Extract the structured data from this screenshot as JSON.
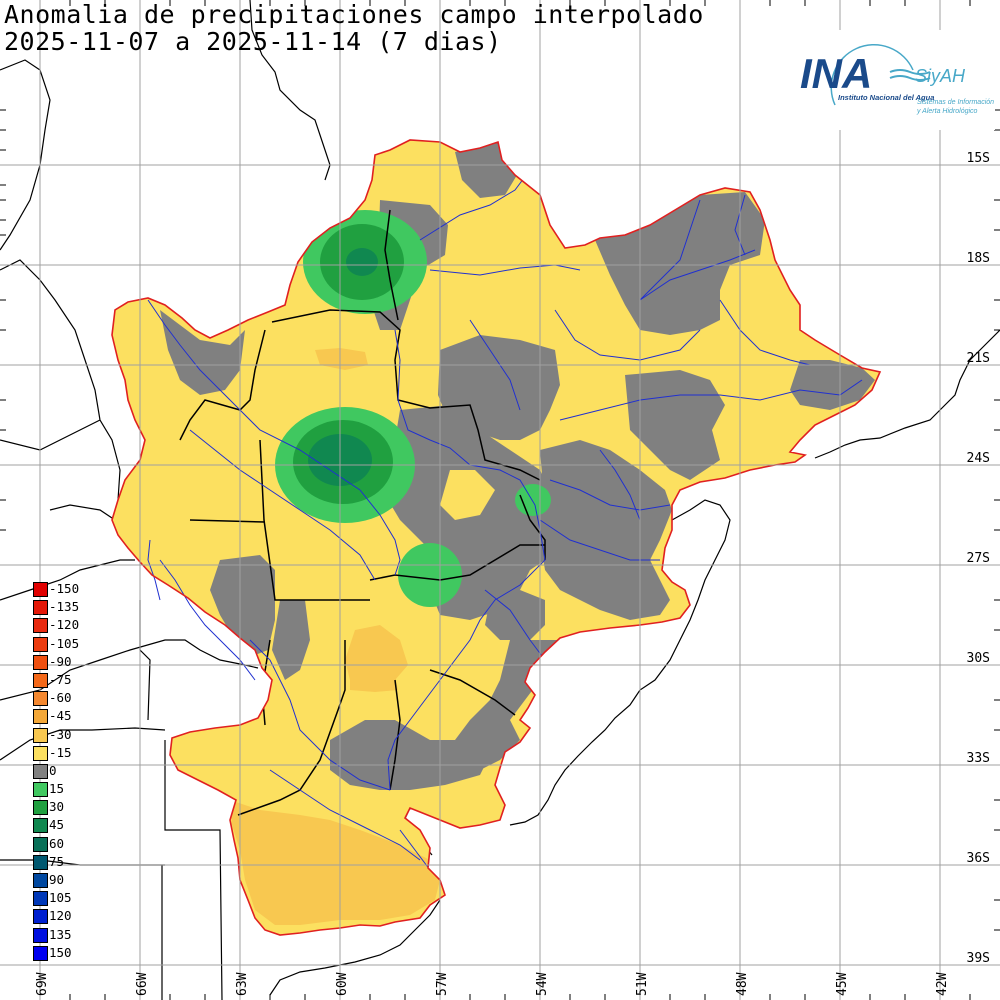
{
  "title": {
    "line1": "Anomalia de precipitaciones campo interpolado",
    "line2": "2025-11-07 a 2025-11-14 (7 dias)"
  },
  "logo": {
    "name": "INA",
    "subtitle": "Instituto Nacional del Agua",
    "system": "SiyAH",
    "system_desc1": "Sistemas de Información",
    "system_desc2": "y Alerta Hidrológico"
  },
  "latitude_labels": [
    "15S",
    "18S",
    "21S",
    "24S",
    "27S",
    "30S",
    "33S",
    "36S",
    "39S"
  ],
  "longitude_labels": [
    "69W",
    "66W",
    "63W",
    "60W",
    "57W",
    "54W",
    "51W",
    "48W",
    "45W",
    "42W"
  ],
  "legend": [
    {
      "label": "-150",
      "color": "#e00000"
    },
    {
      "label": "-135",
      "color": "#e41808"
    },
    {
      "label": "-120",
      "color": "#e82a10"
    },
    {
      "label": "-105",
      "color": "#ec3c10"
    },
    {
      "label": "-90",
      "color": "#f05010"
    },
    {
      "label": "-75",
      "color": "#f46818"
    },
    {
      "label": "-60",
      "color": "#f48830"
    },
    {
      "label": "-45",
      "color": "#f4a838"
    },
    {
      "label": "-30",
      "color": "#f8c850"
    },
    {
      "label": "-15",
      "color": "#fce060"
    },
    {
      "label": "0",
      "color": "#808080"
    },
    {
      "label": "15",
      "color": "#40c860"
    },
    {
      "label": "30",
      "color": "#20a040"
    },
    {
      "label": "45",
      "color": "#108850"
    },
    {
      "label": "60",
      "color": "#087058"
    },
    {
      "label": "75",
      "color": "#005870"
    },
    {
      "label": "90",
      "color": "#0048a0"
    },
    {
      "label": "105",
      "color": "#0038b8"
    },
    {
      "label": "120",
      "color": "#0020d0"
    },
    {
      "label": "135",
      "color": "#0010e0"
    },
    {
      "label": "150",
      "color": "#0000f0"
    }
  ],
  "colors": {
    "basin_outline": "#e02020",
    "rivers": "#2030d0",
    "borders": "#000000",
    "grid": "#a0a0a0",
    "dry_light": "#fce060",
    "dry_mid": "#f8c850",
    "neutral": "#808080",
    "wet1": "#40c860",
    "wet2": "#20a040",
    "wet3": "#108850"
  }
}
